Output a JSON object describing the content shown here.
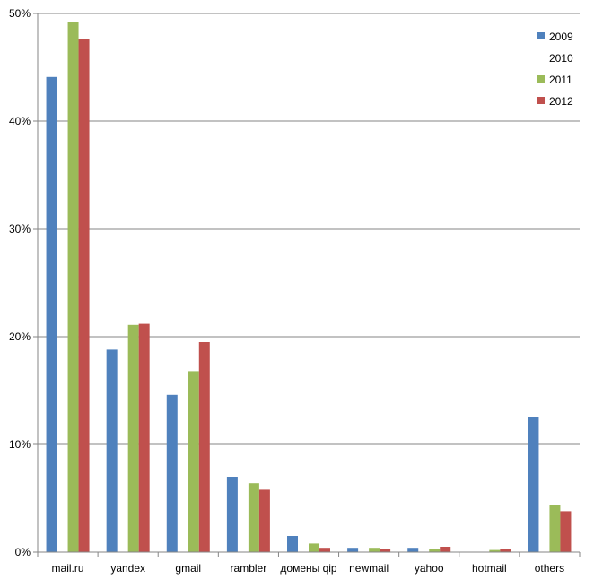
{
  "chart_data": {
    "type": "bar",
    "title": "",
    "xlabel": "",
    "ylabel": "",
    "categories": [
      "mail.ru",
      "yandex",
      "gmail",
      "rambler",
      "домены qip",
      "newmail",
      "yahoo",
      "hotmail",
      "others"
    ],
    "series": [
      {
        "name": "2009",
        "color": "#4f81bd",
        "values": [
          44.1,
          18.8,
          14.6,
          7.0,
          1.5,
          0.4,
          0.4,
          0.0,
          12.5
        ]
      },
      {
        "name": "2010",
        "color": "#ffffff",
        "values": [
          0,
          0,
          0,
          0,
          0,
          0,
          0,
          0,
          0
        ]
      },
      {
        "name": "2011",
        "color": "#9bbb59",
        "values": [
          49.2,
          21.1,
          16.8,
          6.4,
          0.8,
          0.4,
          0.3,
          0.2,
          4.4
        ]
      },
      {
        "name": "2012",
        "color": "#c0504d",
        "values": [
          47.6,
          21.2,
          19.5,
          5.8,
          0.4,
          0.3,
          0.5,
          0.3,
          3.8
        ]
      }
    ],
    "ylim": [
      0,
      50
    ],
    "yticks": [
      "0%",
      "10%",
      "20%",
      "30%",
      "40%",
      "50%"
    ],
    "grid": true,
    "legend_position": "top-right"
  }
}
